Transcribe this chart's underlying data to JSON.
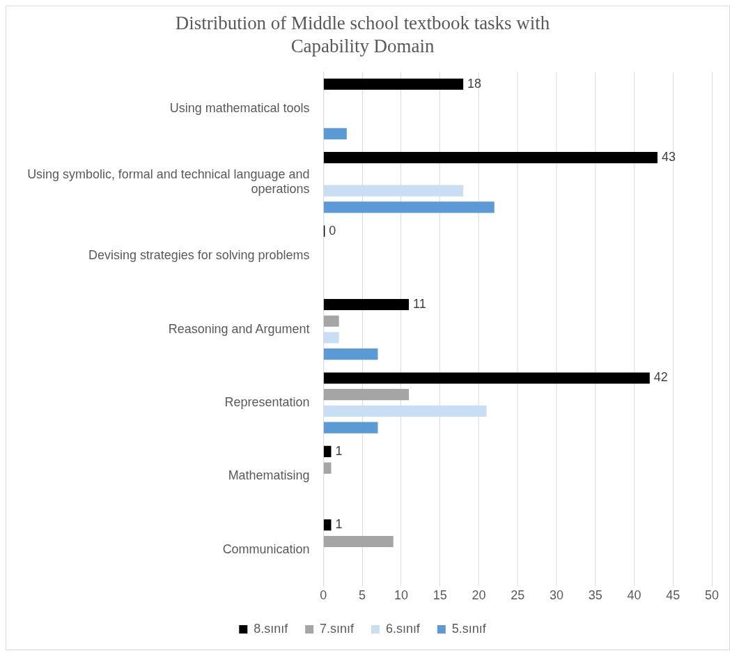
{
  "chart_data": {
    "type": "bar",
    "orientation": "horizontal",
    "title": "Distribution of Middle school textbook tasks with Capability Domain",
    "categories": [
      "Using mathematical tools",
      "Using symbolic, formal and technical language and operations",
      "Devising strategies for solving problems",
      "Reasoning and Argument",
      "Representation",
      "Mathematising",
      "Communication"
    ],
    "series": [
      {
        "name": "8.sınıf",
        "color": "#000000",
        "values": [
          18,
          43,
          0,
          11,
          42,
          1,
          1
        ],
        "value_labels": [
          "18",
          "43",
          "0",
          "11",
          "42",
          "1",
          "1"
        ]
      },
      {
        "name": "7.sınıf",
        "color": "#a5a5a5",
        "values": [
          0,
          0,
          0,
          2,
          11,
          1,
          9
        ]
      },
      {
        "name": "6.sınıf",
        "color": "#c9def2",
        "values": [
          0,
          18,
          0,
          2,
          21,
          0,
          0
        ]
      },
      {
        "name": "5.sınıf",
        "color": "#5b9bd5",
        "values": [
          3,
          22,
          0,
          7,
          7,
          0,
          0
        ]
      }
    ],
    "xlim": [
      0,
      50
    ],
    "xticks": [
      0,
      5,
      10,
      15,
      20,
      25,
      30,
      35,
      40,
      45,
      50
    ],
    "grid": "x",
    "legend": "bottom"
  }
}
